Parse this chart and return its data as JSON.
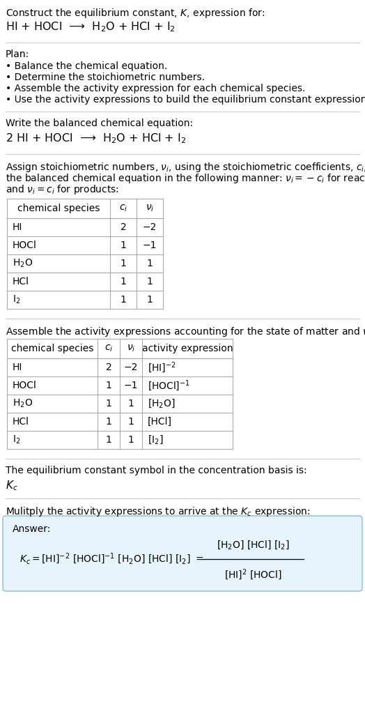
{
  "title_line1": "Construct the equilibrium constant, $K$, expression for:",
  "title_line2": "HI + HOCl  ⟶  H$_2$O + HCl + I$_2$",
  "plan_header": "Plan:",
  "plan_items": [
    "• Balance the chemical equation.",
    "• Determine the stoichiometric numbers.",
    "• Assemble the activity expression for each chemical species.",
    "• Use the activity expressions to build the equilibrium constant expression."
  ],
  "balanced_header": "Write the balanced chemical equation:",
  "balanced_eq": "2 HI + HOCl  ⟶  H$_2$O + HCl + I$_2$",
  "stoich_intro_lines": [
    "Assign stoichiometric numbers, $\\nu_i$, using the stoichiometric coefficients, $c_i$, from",
    "the balanced chemical equation in the following manner: $\\nu_i = -c_i$ for reactants",
    "and $\\nu_i = c_i$ for products:"
  ],
  "table1_headers": [
    "chemical species",
    "$c_i$",
    "$\\nu_i$"
  ],
  "table1_data": [
    [
      "HI",
      "2",
      "−2"
    ],
    [
      "HOCl",
      "1",
      "−1"
    ],
    [
      "H$_2$O",
      "1",
      "1"
    ],
    [
      "HCl",
      "1",
      "1"
    ],
    [
      "I$_2$",
      "1",
      "1"
    ]
  ],
  "activity_intro": "Assemble the activity expressions accounting for the state of matter and $\\nu_i$:",
  "table2_headers": [
    "chemical species",
    "$c_i$",
    "$\\nu_i$",
    "activity expression"
  ],
  "table2_data": [
    [
      "HI",
      "2",
      "−2",
      "[HI]$^{-2}$"
    ],
    [
      "HOCl",
      "1",
      "−1",
      "[HOCl]$^{-1}$"
    ],
    [
      "H$_2$O",
      "1",
      "1",
      "[H$_2$O]"
    ],
    [
      "HCl",
      "1",
      "1",
      "[HCl]"
    ],
    [
      "I$_2$",
      "1",
      "1",
      "[I$_2$]"
    ]
  ],
  "kc_intro": "The equilibrium constant symbol in the concentration basis is:",
  "kc_symbol": "$K_c$",
  "multiply_intro": "Mulitply the activity expressions to arrive at the $K_c$ expression:",
  "answer_label": "Answer:",
  "bg_color": "#ffffff",
  "answer_box_color": "#e8f4fd",
  "answer_box_border": "#87bedf",
  "text_color": "#000000",
  "line_color": "#cccccc",
  "table_line_color": "#aaaaaa",
  "font_size": 10.0,
  "table_font_size": 10.0
}
